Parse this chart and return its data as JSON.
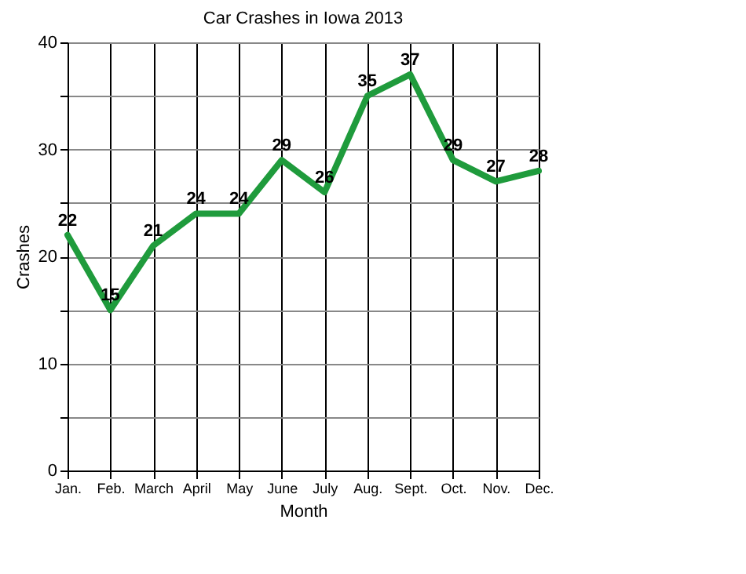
{
  "chart_data": {
    "type": "line",
    "title": "Car Crashes in Iowa 2013",
    "xlabel": "Month",
    "ylabel": "Crashes",
    "categories": [
      "Jan.",
      "Feb.",
      "March",
      "April",
      "May",
      "June",
      "July",
      "Aug.",
      "Sept.",
      "Oct.",
      "Nov.",
      "Dec."
    ],
    "series": [
      {
        "color": "#1f9b3c",
        "values": [
          22,
          15,
          21,
          24,
          24,
          29,
          26,
          35,
          37,
          29,
          27,
          28
        ]
      }
    ],
    "ylim": [
      0,
      40
    ],
    "yticks": [
      0,
      {
        "value": 5,
        "label": null
      },
      10,
      {
        "value": 15,
        "label": null
      },
      20,
      {
        "value": 25,
        "label": null
      },
      30,
      {
        "value": 35,
        "label": null
      },
      40
    ],
    "grid": true,
    "data_labels": true,
    "marker": "none",
    "line_style": "solid"
  }
}
